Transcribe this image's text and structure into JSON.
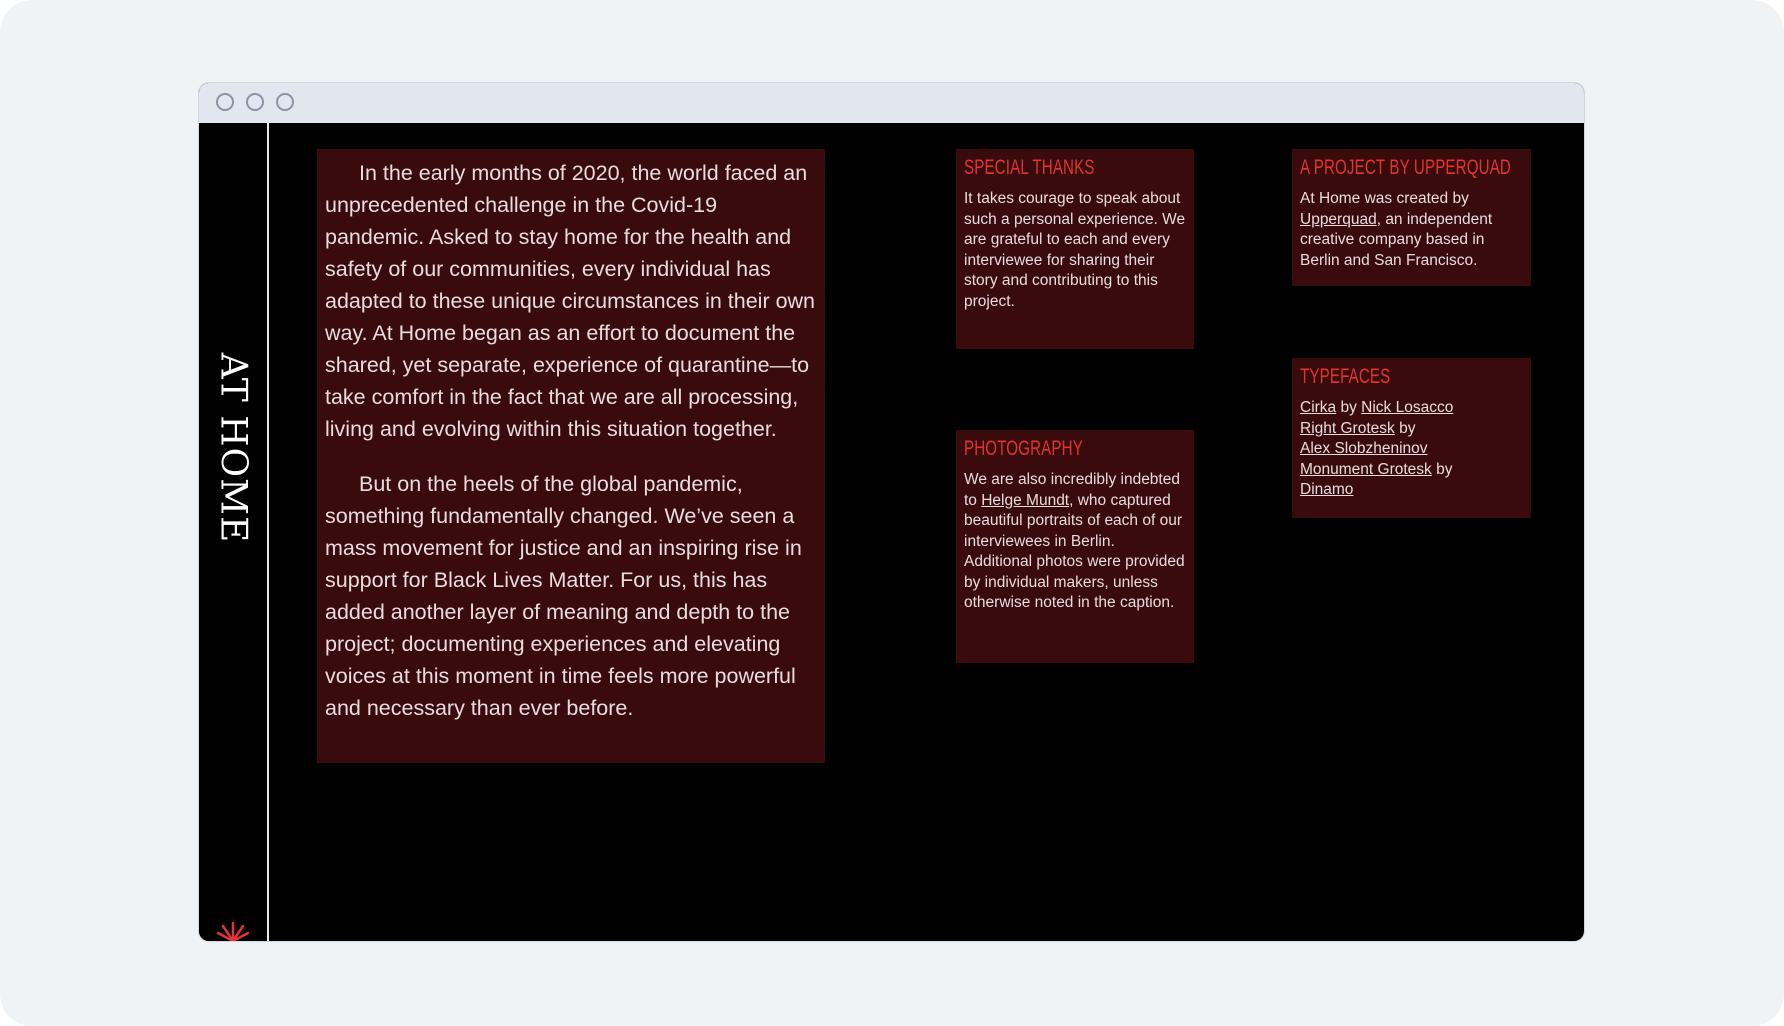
{
  "site": {
    "title": "AT HOME"
  },
  "intro": {
    "paragraphs": [
      "In the early months of 2020, the world faced an unprecedented challenge in the Covid-19 pandemic. Asked to stay home for the health and safety of our communities, every individual has adapted to these unique circumstances in their own way. At Home began as an effort to document the shared, yet separate, experience of quarantine—to take comfort in the fact that we are all processing, living and evolving within this situation together.",
      "But on the heels of the global pandemic, something fundamentally changed. We’ve seen a mass movement for justice and an inspiring rise in support for Black Lives Matter. For us, this has added another layer of meaning and depth to the project; documenting experiences and elevating voices at this moment in time feels more powerful and necessary than ever before."
    ]
  },
  "special_thanks": {
    "heading": "SPECIAL THANKS",
    "body": "It takes courage to speak about such a personal experience. We are grateful to each and every interviewee for sharing their story and contributing to this project."
  },
  "photography": {
    "heading": "PHOTOGRAPHY",
    "text_before": "We are also incredibly indebted to ",
    "link": "Helge Mundt",
    "text_after": ", who captured beautiful portraits of each of our interviewees in Berlin. Additional photos were provided by individual makers, unless otherwise noted in the caption."
  },
  "project": {
    "heading": "A PROJECT BY UPPERQUAD",
    "text_before": "At Home was created by ",
    "link": "Upperquad",
    "text_after": ", an independent creative company based in Berlin and San Francisco."
  },
  "typefaces": {
    "heading": "TYPEFACES",
    "by": " by ",
    "items": [
      {
        "font": "Cirka",
        "designer": "Nick Losacco"
      },
      {
        "font": "Right Grotesk",
        "designer": "Alex Slobzheninov"
      },
      {
        "font": "Monument Grotesk",
        "designer": "Dinamo"
      }
    ]
  },
  "colors": {
    "accent": "#e03532",
    "panel": "#3a0b0d",
    "background": "#000000",
    "text": "#e8dcdc"
  }
}
